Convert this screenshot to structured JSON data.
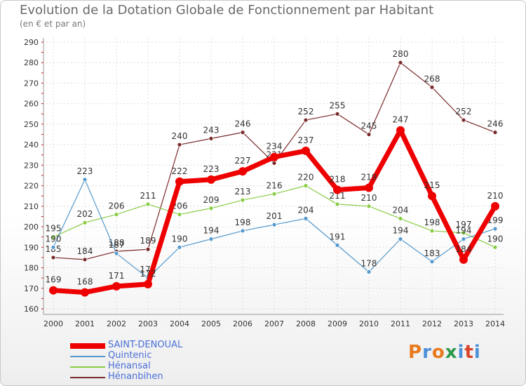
{
  "header": {
    "title": "Evolution de la Dotation Globale de Fonctionnement par Habitant",
    "subtitle": "(en € et par an)"
  },
  "brand": {
    "letters": [
      "P",
      "r",
      "o",
      "x",
      "i",
      "t",
      "i"
    ]
  },
  "chart_data": {
    "type": "line",
    "title": "Evolution de la Dotation Globale de Fonctionnement par Habitant",
    "subtitle": "(en € et par an)",
    "xlabel": "",
    "ylabel": "",
    "x": [
      "2000",
      "2001",
      "2002",
      "2003",
      "2004",
      "2005",
      "2006",
      "2007",
      "2008",
      "2009",
      "2010",
      "2011",
      "2012",
      "2013",
      "2014"
    ],
    "ylim": [
      160,
      290
    ],
    "yticks": [
      160,
      170,
      180,
      190,
      200,
      210,
      220,
      230,
      240,
      250,
      260,
      270,
      280,
      290
    ],
    "grid": true,
    "legend_position": "bottom-left",
    "series": [
      {
        "name": "Hénanbihen",
        "color": "#7a2a2a",
        "values": [
          185,
          184,
          188,
          189,
          240,
          243,
          246,
          231,
          252,
          255,
          245,
          280,
          268,
          252,
          246
        ]
      },
      {
        "name": "Hénansal",
        "color": "#88cc44",
        "values": [
          195,
          202,
          206,
          211,
          206,
          209,
          213,
          216,
          220,
          211,
          210,
          204,
          198,
          197,
          190
        ]
      },
      {
        "name": "Quintenic",
        "color": "#5599cc",
        "values": [
          190,
          223,
          187,
          175,
          190,
          194,
          198,
          201,
          204,
          191,
          178,
          194,
          183,
          194,
          199
        ]
      },
      {
        "name": "SAINT-DENOUAL",
        "color": "#ee0000",
        "values": [
          169,
          168,
          171,
          172,
          222,
          223,
          227,
          234,
          237,
          218,
          219,
          247,
          215,
          184,
          210
        ]
      }
    ]
  }
}
